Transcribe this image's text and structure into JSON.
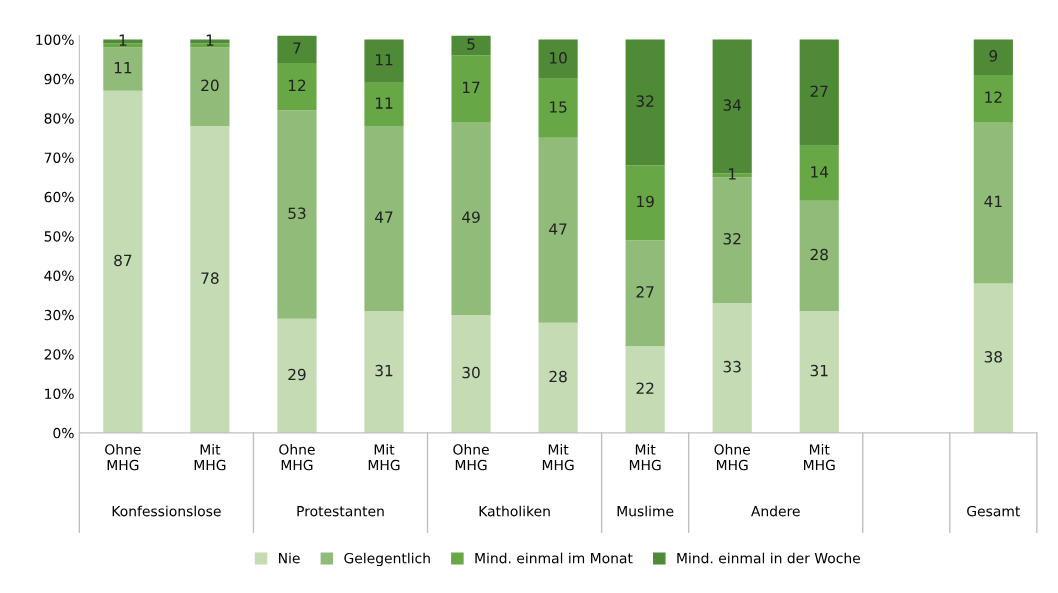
{
  "chart_data": {
    "type": "bar",
    "stacked": true,
    "categories": [
      "Ohne\nMHG",
      "Mit\nMHG",
      "Ohne\nMHG",
      "Mit\nMHG",
      "Ohne\nMHG",
      "Mit\nMHG",
      "Mit\nMHG",
      "Ohne\nMHG",
      "Mit\nMHG",
      null,
      null
    ],
    "annotations": [
      "Konfessionslose",
      "Protestanten",
      "Katholiken",
      "Muslime",
      "Andere",
      "Gesamt"
    ],
    "series": [
      {
        "name": "Nie",
        "color": "#c4dbb4",
        "values": [
          87,
          78,
          29,
          31,
          30,
          28,
          22,
          33,
          31,
          null,
          38
        ],
        "value_labels": [
          "87",
          "78",
          "29",
          "31",
          "30",
          "28",
          "22",
          "33",
          "31",
          null,
          "38"
        ]
      },
      {
        "name": "Gelegentlich",
        "color": "#90bb78",
        "values": [
          11,
          20,
          53,
          47,
          49,
          47,
          27,
          32,
          28,
          null,
          41
        ],
        "value_labels": [
          "11",
          "20",
          "53",
          "47",
          "49",
          "47",
          "27",
          "32",
          "28",
          null,
          "41"
        ]
      },
      {
        "name": "Mind. einmal im Monat",
        "color": "#68a746",
        "values": [
          1,
          1,
          12,
          11,
          17,
          15,
          19,
          1,
          14,
          null,
          12
        ],
        "value_labels": [
          null,
          null,
          "12",
          "11",
          "17",
          "15",
          "19",
          "1",
          "14",
          null,
          "12"
        ]
      },
      {
        "name": "Mind. einmal in der Woche",
        "color": "#4f8a36",
        "values": [
          1,
          1,
          7,
          11,
          5,
          10,
          32,
          34,
          27,
          null,
          9
        ],
        "value_labels": [
          "1",
          "1",
          "7",
          "11",
          "5",
          "10",
          "32",
          "34",
          "27",
          null,
          "9"
        ]
      }
    ],
    "ylim": [
      0,
      101
    ],
    "yticks": [
      {
        "value": 0,
        "label": "0%"
      },
      {
        "value": 10,
        "label": "10%"
      },
      {
        "value": 20,
        "label": "20%"
      },
      {
        "value": 30,
        "label": "30%"
      },
      {
        "value": 40,
        "label": "40%"
      },
      {
        "value": 50,
        "label": "50%"
      },
      {
        "value": 60,
        "label": "60%"
      },
      {
        "value": 70,
        "label": "70%"
      },
      {
        "value": 80,
        "label": "80%"
      },
      {
        "value": 90,
        "label": "90%"
      },
      {
        "value": 100,
        "label": "100%"
      }
    ],
    "grid": false,
    "legend": "bottom"
  }
}
